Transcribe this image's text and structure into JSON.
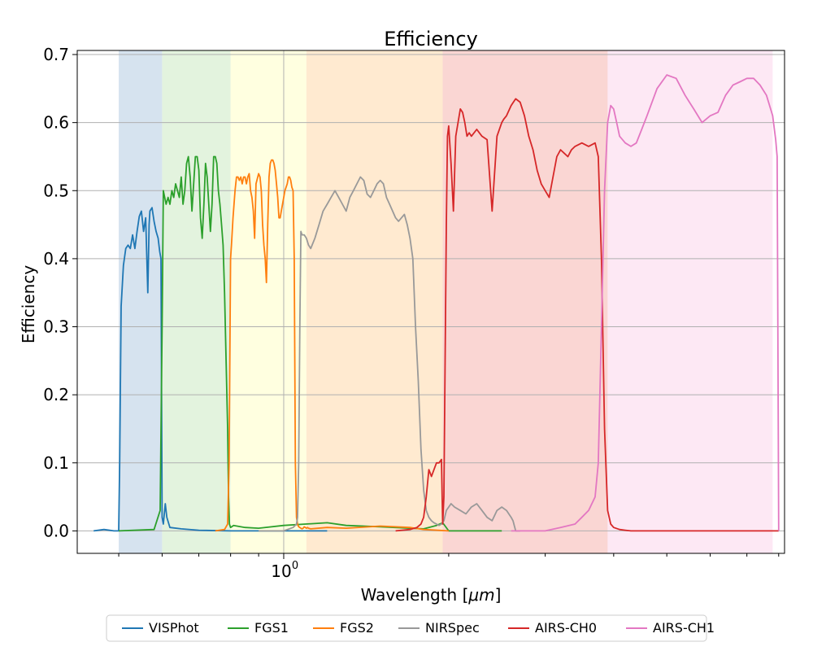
{
  "chart_data": {
    "type": "line",
    "title": "Efficiency",
    "xlabel_text": "Wavelength [",
    "xlabel_math": "μm",
    "xlabel_close": "]",
    "ylabel": "Efficiency",
    "x_scale": "log",
    "xlim": [
      0.42,
      8.2
    ],
    "ylim": [
      -0.033,
      0.706
    ],
    "x_major_tick": {
      "value": 1.0,
      "label": "10",
      "exponent": "0"
    },
    "y_ticks": [
      0.0,
      0.1,
      0.2,
      0.3,
      0.4,
      0.5,
      0.6,
      0.7
    ],
    "y_tick_labels": [
      "0.0",
      "0.1",
      "0.2",
      "0.3",
      "0.4",
      "0.5",
      "0.6",
      "0.7"
    ],
    "grid": true,
    "legend_position": "bottom-center, outside",
    "bands": [
      {
        "name": "VISPhot",
        "x0": 0.5,
        "x1": 0.6,
        "color": "#d6e3ef"
      },
      {
        "name": "FGS1",
        "x0": 0.6,
        "x1": 0.8,
        "color": "#e3f3de"
      },
      {
        "name": "FGS2",
        "x0": 0.8,
        "x1": 1.1,
        "color": "#ffffe0"
      },
      {
        "name": "NIRSpec",
        "x0": 1.1,
        "x1": 1.95,
        "color": "#ffead0"
      },
      {
        "name": "AIRS-CH0",
        "x0": 1.95,
        "x1": 3.9,
        "color": "#fad6d3"
      },
      {
        "name": "AIRS-CH1",
        "x0": 3.9,
        "x1": 7.8,
        "color": "#fde8f4"
      }
    ],
    "series": [
      {
        "name": "VISPhot",
        "color": "#1f77b4",
        "x": [
          0.45,
          0.47,
          0.49,
          0.5,
          0.502,
          0.505,
          0.51,
          0.515,
          0.52,
          0.525,
          0.53,
          0.535,
          0.54,
          0.545,
          0.55,
          0.555,
          0.56,
          0.565,
          0.568,
          0.57,
          0.575,
          0.58,
          0.585,
          0.59,
          0.594,
          0.597,
          0.6,
          0.603,
          0.608,
          0.612,
          0.62,
          0.65,
          0.7,
          0.8,
          1.0,
          1.2
        ],
        "y": [
          0.0,
          0.002,
          0.0,
          0.0,
          0.1,
          0.33,
          0.39,
          0.415,
          0.42,
          0.415,
          0.435,
          0.415,
          0.44,
          0.462,
          0.47,
          0.44,
          0.46,
          0.35,
          0.45,
          0.47,
          0.475,
          0.455,
          0.44,
          0.43,
          0.41,
          0.4,
          0.02,
          0.01,
          0.04,
          0.02,
          0.005,
          0.003,
          0.001,
          0.0,
          0.0,
          0.0
        ]
      },
      {
        "name": "FGS1",
        "color": "#2ca02c",
        "x": [
          0.5,
          0.58,
          0.595,
          0.6,
          0.603,
          0.61,
          0.615,
          0.62,
          0.625,
          0.63,
          0.635,
          0.64,
          0.645,
          0.65,
          0.655,
          0.66,
          0.665,
          0.67,
          0.675,
          0.68,
          0.685,
          0.69,
          0.695,
          0.7,
          0.705,
          0.71,
          0.715,
          0.72,
          0.725,
          0.73,
          0.735,
          0.74,
          0.745,
          0.75,
          0.755,
          0.76,
          0.765,
          0.77,
          0.775,
          0.78,
          0.785,
          0.79,
          0.793,
          0.796,
          0.8,
          0.81,
          0.85,
          0.9,
          1.0,
          1.2,
          1.3,
          1.5,
          1.8,
          1.9,
          1.95,
          2.0,
          2.5
        ],
        "y": [
          0.0,
          0.002,
          0.03,
          0.3,
          0.5,
          0.48,
          0.49,
          0.48,
          0.5,
          0.49,
          0.51,
          0.5,
          0.49,
          0.52,
          0.48,
          0.5,
          0.54,
          0.55,
          0.52,
          0.47,
          0.51,
          0.55,
          0.55,
          0.53,
          0.46,
          0.43,
          0.48,
          0.54,
          0.52,
          0.48,
          0.44,
          0.48,
          0.55,
          0.55,
          0.54,
          0.5,
          0.48,
          0.45,
          0.42,
          0.35,
          0.25,
          0.15,
          0.05,
          0.01,
          0.005,
          0.008,
          0.005,
          0.004,
          0.008,
          0.012,
          0.008,
          0.006,
          0.003,
          0.008,
          0.012,
          0.0,
          0.0
        ]
      },
      {
        "name": "FGS2",
        "color": "#ff7f0e",
        "x": [
          0.75,
          0.78,
          0.79,
          0.795,
          0.8,
          0.803,
          0.808,
          0.815,
          0.82,
          0.825,
          0.83,
          0.835,
          0.84,
          0.845,
          0.85,
          0.855,
          0.86,
          0.865,
          0.87,
          0.875,
          0.88,
          0.885,
          0.89,
          0.9,
          0.905,
          0.91,
          0.915,
          0.92,
          0.925,
          0.93,
          0.935,
          0.94,
          0.945,
          0.95,
          0.955,
          0.96,
          0.965,
          0.97,
          0.975,
          0.98,
          0.985,
          0.99,
          0.995,
          1.0,
          1.005,
          1.01,
          1.015,
          1.02,
          1.025,
          1.03,
          1.035,
          1.04,
          1.045,
          1.05,
          1.055,
          1.06,
          1.065,
          1.07,
          1.075,
          1.08,
          1.085,
          1.09,
          1.095,
          1.1,
          1.105,
          1.11,
          1.12,
          1.2,
          1.3,
          1.5,
          1.7,
          1.8,
          2.0
        ],
        "y": [
          0.0,
          0.002,
          0.01,
          0.1,
          0.4,
          0.42,
          0.46,
          0.5,
          0.52,
          0.52,
          0.515,
          0.52,
          0.51,
          0.52,
          0.52,
          0.51,
          0.52,
          0.525,
          0.5,
          0.49,
          0.47,
          0.43,
          0.51,
          0.525,
          0.52,
          0.5,
          0.45,
          0.42,
          0.4,
          0.365,
          0.45,
          0.52,
          0.54,
          0.545,
          0.545,
          0.54,
          0.53,
          0.51,
          0.49,
          0.46,
          0.46,
          0.47,
          0.48,
          0.49,
          0.5,
          0.505,
          0.51,
          0.52,
          0.52,
          0.515,
          0.505,
          0.5,
          0.4,
          0.1,
          0.02,
          0.01,
          0.006,
          0.005,
          0.004,
          0.003,
          0.004,
          0.006,
          0.005,
          0.004,
          0.005,
          0.004,
          0.003,
          0.005,
          0.004,
          0.007,
          0.005,
          0.002,
          0.0
        ]
      },
      {
        "name": "NIRSpec",
        "color": "#999999",
        "x": [
          0.9,
          1.0,
          1.04,
          1.055,
          1.06,
          1.065,
          1.07,
          1.075,
          1.08,
          1.09,
          1.1,
          1.11,
          1.12,
          1.14,
          1.16,
          1.18,
          1.2,
          1.22,
          1.24,
          1.26,
          1.28,
          1.3,
          1.32,
          1.34,
          1.36,
          1.38,
          1.4,
          1.42,
          1.44,
          1.46,
          1.48,
          1.5,
          1.52,
          1.54,
          1.56,
          1.58,
          1.6,
          1.62,
          1.64,
          1.66,
          1.68,
          1.7,
          1.72,
          1.74,
          1.76,
          1.78,
          1.8,
          1.82,
          1.84,
          1.86,
          1.88,
          1.9,
          1.92,
          1.94,
          1.96,
          1.98,
          2.0,
          2.02,
          2.05,
          2.1,
          2.15,
          2.2,
          2.25,
          2.3,
          2.35,
          2.4,
          2.45,
          2.5,
          2.55,
          2.6,
          2.62,
          2.65,
          2.7
        ],
        "y": [
          0.0,
          0.0,
          0.005,
          0.01,
          0.02,
          0.1,
          0.3,
          0.44,
          0.435,
          0.435,
          0.43,
          0.42,
          0.415,
          0.43,
          0.45,
          0.47,
          0.48,
          0.49,
          0.5,
          0.49,
          0.48,
          0.47,
          0.49,
          0.5,
          0.51,
          0.52,
          0.515,
          0.495,
          0.49,
          0.5,
          0.51,
          0.515,
          0.51,
          0.49,
          0.48,
          0.47,
          0.46,
          0.455,
          0.46,
          0.465,
          0.45,
          0.43,
          0.4,
          0.3,
          0.22,
          0.12,
          0.06,
          0.03,
          0.02,
          0.015,
          0.012,
          0.01,
          0.008,
          0.01,
          0.015,
          0.03,
          0.035,
          0.04,
          0.035,
          0.03,
          0.025,
          0.035,
          0.04,
          0.03,
          0.02,
          0.015,
          0.03,
          0.035,
          0.03,
          0.02,
          0.015,
          0.0,
          0.0
        ]
      },
      {
        "name": "AIRS-CH0",
        "color": "#d62728",
        "x": [
          1.6,
          1.7,
          1.75,
          1.78,
          1.8,
          1.82,
          1.84,
          1.86,
          1.88,
          1.9,
          1.92,
          1.94,
          1.95,
          1.96,
          1.97,
          1.98,
          1.99,
          2.0,
          2.02,
          2.04,
          2.06,
          2.08,
          2.1,
          2.12,
          2.14,
          2.16,
          2.18,
          2.2,
          2.25,
          2.3,
          2.35,
          2.4,
          2.45,
          2.5,
          2.52,
          2.55,
          2.6,
          2.65,
          2.7,
          2.75,
          2.8,
          2.85,
          2.9,
          2.95,
          3.0,
          3.05,
          3.1,
          3.15,
          3.2,
          3.25,
          3.3,
          3.35,
          3.4,
          3.5,
          3.6,
          3.7,
          3.75,
          3.8,
          3.85,
          3.9,
          3.95,
          4.0,
          4.1,
          4.2,
          4.3,
          4.5,
          5.0,
          6.0,
          7.0,
          8.0
        ],
        "y": [
          0.0,
          0.002,
          0.005,
          0.01,
          0.02,
          0.05,
          0.09,
          0.08,
          0.09,
          0.1,
          0.1,
          0.105,
          0.01,
          0.05,
          0.25,
          0.45,
          0.58,
          0.595,
          0.54,
          0.47,
          0.58,
          0.6,
          0.62,
          0.615,
          0.6,
          0.58,
          0.585,
          0.58,
          0.59,
          0.58,
          0.575,
          0.47,
          0.58,
          0.6,
          0.605,
          0.61,
          0.625,
          0.635,
          0.63,
          0.61,
          0.58,
          0.56,
          0.53,
          0.51,
          0.5,
          0.49,
          0.52,
          0.55,
          0.56,
          0.555,
          0.55,
          0.56,
          0.565,
          0.57,
          0.565,
          0.57,
          0.55,
          0.4,
          0.15,
          0.03,
          0.01,
          0.005,
          0.002,
          0.001,
          0.0,
          0.0,
          0.0,
          0.0,
          0.0,
          0.0
        ]
      },
      {
        "name": "AIRS-CH1",
        "color": "#e377c2",
        "x": [
          2.6,
          3.0,
          3.2,
          3.4,
          3.5,
          3.6,
          3.7,
          3.75,
          3.8,
          3.85,
          3.9,
          3.95,
          4.0,
          4.05,
          4.1,
          4.2,
          4.3,
          4.4,
          4.5,
          4.6,
          4.8,
          5.0,
          5.2,
          5.4,
          5.6,
          5.8,
          6.0,
          6.2,
          6.4,
          6.6,
          6.8,
          7.0,
          7.2,
          7.4,
          7.6,
          7.8,
          7.9,
          7.95,
          8.0
        ],
        "y": [
          0.0,
          0.0,
          0.005,
          0.01,
          0.02,
          0.03,
          0.05,
          0.1,
          0.3,
          0.5,
          0.6,
          0.625,
          0.62,
          0.6,
          0.58,
          0.57,
          0.565,
          0.57,
          0.59,
          0.61,
          0.65,
          0.67,
          0.665,
          0.64,
          0.62,
          0.6,
          0.61,
          0.615,
          0.64,
          0.655,
          0.66,
          0.665,
          0.665,
          0.655,
          0.64,
          0.61,
          0.575,
          0.55,
          0.0
        ]
      }
    ],
    "legend": [
      "VISPhot",
      "FGS1",
      "FGS2",
      "NIRSpec",
      "AIRS-CH0",
      "AIRS-CH1"
    ]
  }
}
